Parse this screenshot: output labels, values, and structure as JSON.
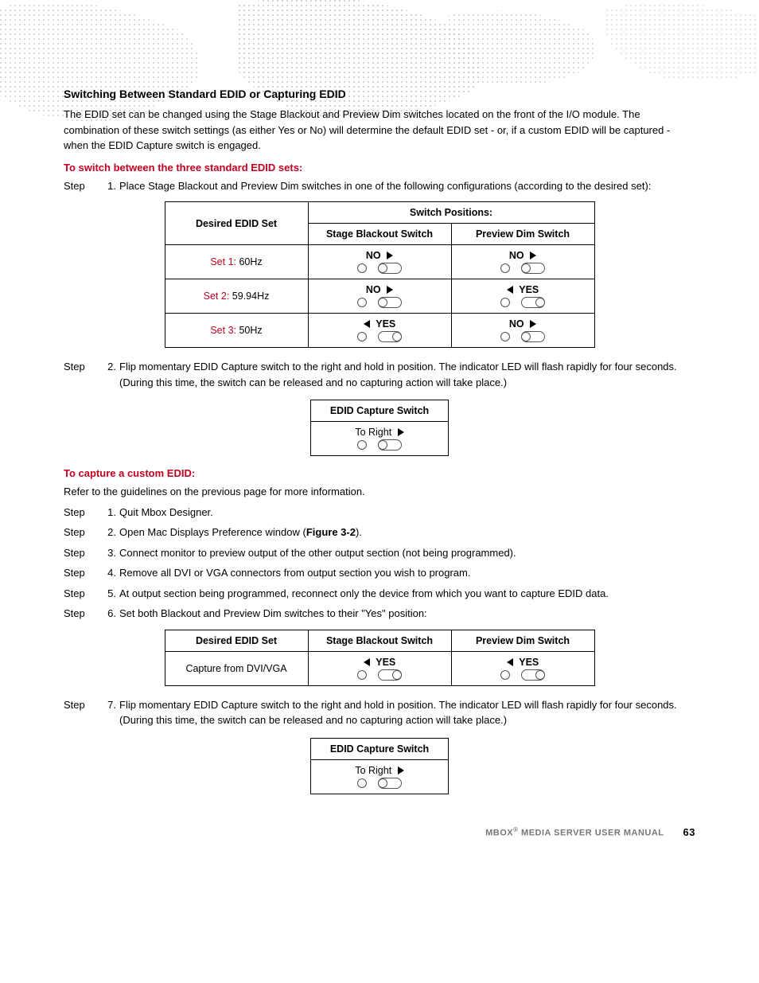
{
  "heading": "Switching Between Standard EDID or Capturing EDID",
  "intro": "The EDID set can be changed using the Stage Blackout and Preview Dim switches located on the front of the I/O module. The combination of these switch settings (as either Yes or No) will determine the default EDID set - or, if a custom EDID will be captured - when the EDID Capture switch is engaged.",
  "sub1": "To switch between the three standard EDID sets:",
  "step1_lbl": "Step",
  "step1_num": "1.",
  "step1_txt": "Place Stage Blackout and Preview Dim switches in one of the following configurations (according to the desired set):",
  "table1": {
    "top": "Switch Positions:",
    "col1": "Desired EDID Set",
    "col2": "Stage Blackout Switch",
    "col3": "Preview Dim Switch",
    "rows": [
      {
        "set_red": "Set 1:",
        "set_rest": " 60Hz",
        "p1": "NO",
        "d1": "r",
        "t1": "left",
        "p2": "NO",
        "d2": "r",
        "t2": "left"
      },
      {
        "set_red": "Set 2:",
        "set_rest": " 59.94Hz",
        "p1": "NO",
        "d1": "r",
        "t1": "left",
        "p2": "YES",
        "d2": "l",
        "t2": "right"
      },
      {
        "set_red": "Set 3:",
        "set_rest": " 50Hz",
        "p1": "YES",
        "d1": "l",
        "t1": "right",
        "p2": "NO",
        "d2": "r",
        "t2": "left"
      }
    ]
  },
  "step2_lbl": "Step",
  "step2_num": "2.",
  "step2_txt": "Flip momentary EDID Capture switch to the right and hold in position. The indicator LED will flash rapidly for four seconds. (During this time, the switch can be released and no capturing action will take place.)",
  "capture_box": {
    "title": "EDID Capture Switch",
    "label": "To Right",
    "dir": "r",
    "toggle": "left"
  },
  "sub2": "To capture a custom EDID:",
  "refer": "Refer to the guidelines on the previous page for more information.",
  "steps_b": [
    {
      "lbl": "Step",
      "num": "1.",
      "txt": "Quit Mbox Designer."
    },
    {
      "lbl": "Step",
      "num": "2.",
      "txt_pre": "Open Mac Displays Preference window (",
      "bold": "Figure 3-2",
      "txt_post": ")."
    },
    {
      "lbl": "Step",
      "num": "3.",
      "txt": "Connect monitor to preview output of the other output section (not being programmed)."
    },
    {
      "lbl": "Step",
      "num": "4.",
      "txt": "Remove all DVI or VGA connectors from output section you wish to program."
    },
    {
      "lbl": "Step",
      "num": "5.",
      "txt": "At output section being programmed, reconnect only the device from which you want to capture EDID data."
    },
    {
      "lbl": "Step",
      "num": "6.",
      "txt": "Set both Blackout and Preview Dim switches to their \"Yes\" position:"
    }
  ],
  "table2": {
    "col1": "Desired EDID Set",
    "col2": "Stage Blackout Switch",
    "col3": "Preview Dim Switch",
    "row": {
      "set": "Capture from DVI/VGA",
      "p1": "YES",
      "d1": "l",
      "t1": "right",
      "p2": "YES",
      "d2": "l",
      "t2": "right"
    }
  },
  "step7_lbl": "Step",
  "step7_num": "7.",
  "step7_txt": "Flip momentary EDID Capture switch to the right and hold in position. The indicator LED will flash rapidly for four seconds. (During this time, the switch can be released and no capturing action will take place.)",
  "footer_title_a": "MBOX",
  "footer_title_b": " MEDIA SERVER USER MANUAL",
  "page_number": "63",
  "colors": {
    "accent": "#c00020"
  }
}
